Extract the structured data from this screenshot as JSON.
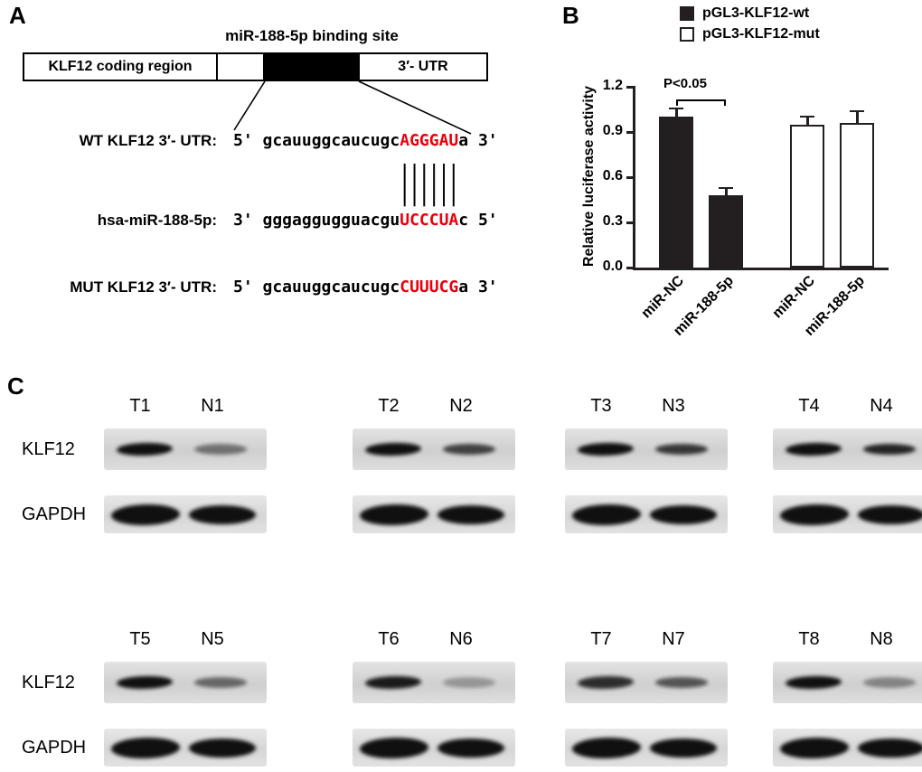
{
  "figure": {
    "panelA": {
      "label": "A",
      "title": "miR-188-5p binding site",
      "diagram": {
        "coding_region_label": "KLF12 coding region",
        "utr_label": "3′- UTR"
      },
      "sequences": {
        "wt": {
          "name": "WT KLF12 3′- UTR:",
          "prefix": "5' gcauuggcaucugc",
          "site": "AGGGAU",
          "suffix": "a 3'"
        },
        "mir": {
          "name": "hsa-miR-188-5p:",
          "prefix": "3' gggaggugguacgu",
          "site": "UCCCUA",
          "suffix": "c 5'"
        },
        "mut": {
          "name": "MUT KLF12 3′- UTR:",
          "prefix": "5' gcauuggcaucugc",
          "site": "CUUUCG",
          "suffix": "a 3'"
        }
      },
      "pairing_bars": "||||||",
      "site_color": "#e8000b"
    },
    "panelB": {
      "label": "B",
      "legend": [
        {
          "label": "pGL3-KLF12-wt",
          "fill": "#231f20"
        },
        {
          "label": "pGL3-KLF12-mut",
          "fill": "#ffffff"
        }
      ]
    },
    "panelC": {
      "label": "C",
      "blocks": [
        {
          "klf12_label": "KLF12",
          "gapdh_label": "GAPDH",
          "groups": [
            {
              "t": "T1",
              "n": "N1",
              "klf12": [
                1.0,
                0.5
              ],
              "gapdh": [
                1.0,
                1.0
              ]
            },
            {
              "t": "T2",
              "n": "N2",
              "klf12": [
                1.0,
                0.75
              ],
              "gapdh": [
                1.0,
                1.0
              ]
            },
            {
              "t": "T3",
              "n": "N3",
              "klf12": [
                1.0,
                0.8
              ],
              "gapdh": [
                1.0,
                1.0
              ]
            },
            {
              "t": "T4",
              "n": "N4",
              "klf12": [
                1.0,
                0.9
              ],
              "gapdh": [
                1.0,
                1.0
              ]
            }
          ]
        },
        {
          "klf12_label": "KLF12",
          "gapdh_label": "GAPDH",
          "groups": [
            {
              "t": "T5",
              "n": "N5",
              "klf12": [
                1.0,
                0.55
              ],
              "gapdh": [
                1.0,
                1.0
              ]
            },
            {
              "t": "T6",
              "n": "N6",
              "klf12": [
                0.95,
                0.3
              ],
              "gapdh": [
                1.0,
                1.0
              ]
            },
            {
              "t": "T7",
              "n": "N7",
              "klf12": [
                0.85,
                0.65
              ],
              "gapdh": [
                1.0,
                1.0
              ]
            },
            {
              "t": "T8",
              "n": "N8",
              "klf12": [
                1.0,
                0.4
              ],
              "gapdh": [
                1.0,
                1.0
              ]
            }
          ]
        }
      ]
    }
  },
  "chart_data": {
    "type": "bar",
    "title": "",
    "categories": [
      "miR-NC",
      "miR-188-5p",
      "miR-NC",
      "miR-188-5p"
    ],
    "series": [
      {
        "name": "Relative luciferase activity",
        "values": [
          1.0,
          0.48,
          0.95,
          0.96
        ],
        "errors": [
          0.05,
          0.04,
          0.05,
          0.07
        ],
        "fills": [
          "#231f20",
          "#231f20",
          "#ffffff",
          "#ffffff"
        ],
        "group": [
          "pGL3-KLF12-wt",
          "pGL3-KLF12-wt",
          "pGL3-KLF12-mut",
          "pGL3-KLF12-mut"
        ]
      }
    ],
    "ylabel": "Relative luciferase activity",
    "xlabel": "",
    "ylim": [
      0,
      1.2
    ],
    "yticks": [
      "0.0",
      "0.3",
      "0.6",
      "0.9",
      "1.2"
    ],
    "legend_position": "top-right",
    "grid": false,
    "annotation": {
      "text": "P<0.05",
      "between": [
        0,
        1
      ]
    }
  }
}
